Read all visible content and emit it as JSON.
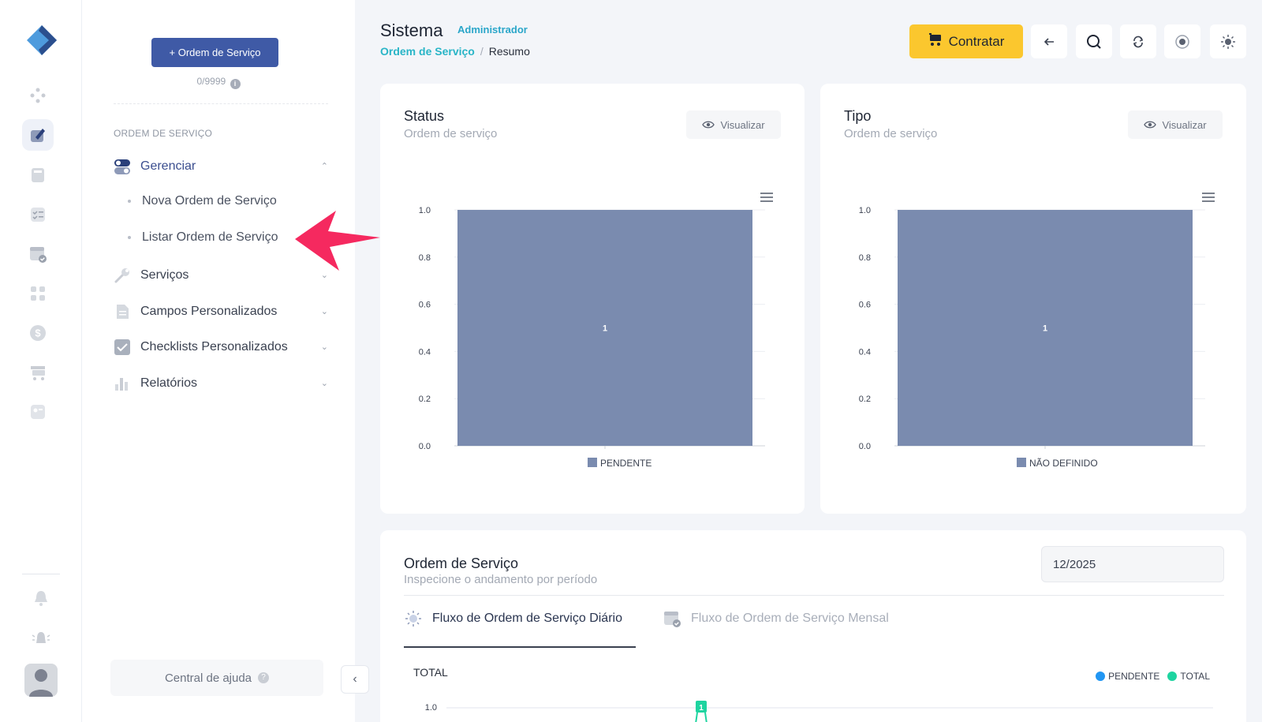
{
  "sidebar": {
    "new_button": "+ Ordem de Serviço",
    "quota": "0/9999",
    "section_title": "ORDEM DE SERVIÇO",
    "menu": [
      {
        "label": "Gerenciar"
      },
      {
        "label": "Serviços"
      },
      {
        "label": "Campos Personalizados"
      },
      {
        "label": "Checklists Personalizados"
      },
      {
        "label": "Relatórios"
      }
    ],
    "submenu": [
      {
        "label": "Nova Ordem de Serviço"
      },
      {
        "label": "Listar Ordem de Serviço"
      }
    ],
    "help": "Central de ajuda"
  },
  "header": {
    "title": "Sistema",
    "role": "Administrador",
    "breadcrumb_link": "Ordem de Serviço",
    "breadcrumb_sep": "/",
    "breadcrumb_current": "Resumo",
    "contratar": "Contratar"
  },
  "cards": {
    "status": {
      "title": "Status",
      "subtitle": "Ordem de serviço",
      "viz": "Visualizar"
    },
    "tipo": {
      "title": "Tipo",
      "subtitle": "Ordem de serviço",
      "viz": "Visualizar"
    },
    "flow": {
      "title": "Ordem de Serviço",
      "subtitle": "Inspecione o andamento por período",
      "period": "12/2025",
      "tab_daily": "Fluxo de Ordem de Serviço Diário",
      "tab_monthly": "Fluxo de Ordem de Serviço Mensal",
      "total_label": "TOTAL",
      "legend": [
        "PENDENTE",
        "TOTAL"
      ],
      "first_tick": "1.0"
    }
  },
  "colors": {
    "accent": "#3f5aa6",
    "bar": "#7a8baf",
    "contratar": "#fbc72e",
    "teal": "#29b5c7",
    "pendente": "#2196f3",
    "total": "#1ed4a0"
  },
  "chart_data": [
    {
      "type": "bar",
      "categories": [
        "PENDENTE"
      ],
      "values": [
        1
      ],
      "ylim": [
        0,
        1
      ],
      "yticks": [
        "0.0",
        "0.2",
        "0.4",
        "0.6",
        "0.8",
        "1.0"
      ],
      "legend": [
        "PENDENTE"
      ],
      "data_labels": [
        "1"
      ]
    },
    {
      "type": "bar",
      "categories": [
        "NÃO DEFINIDO"
      ],
      "values": [
        1
      ],
      "ylim": [
        0,
        1
      ],
      "yticks": [
        "0.0",
        "0.2",
        "0.4",
        "0.6",
        "0.8",
        "1.0"
      ],
      "legend": [
        "NÃO DEFINIDO"
      ],
      "data_labels": [
        "1"
      ]
    }
  ]
}
